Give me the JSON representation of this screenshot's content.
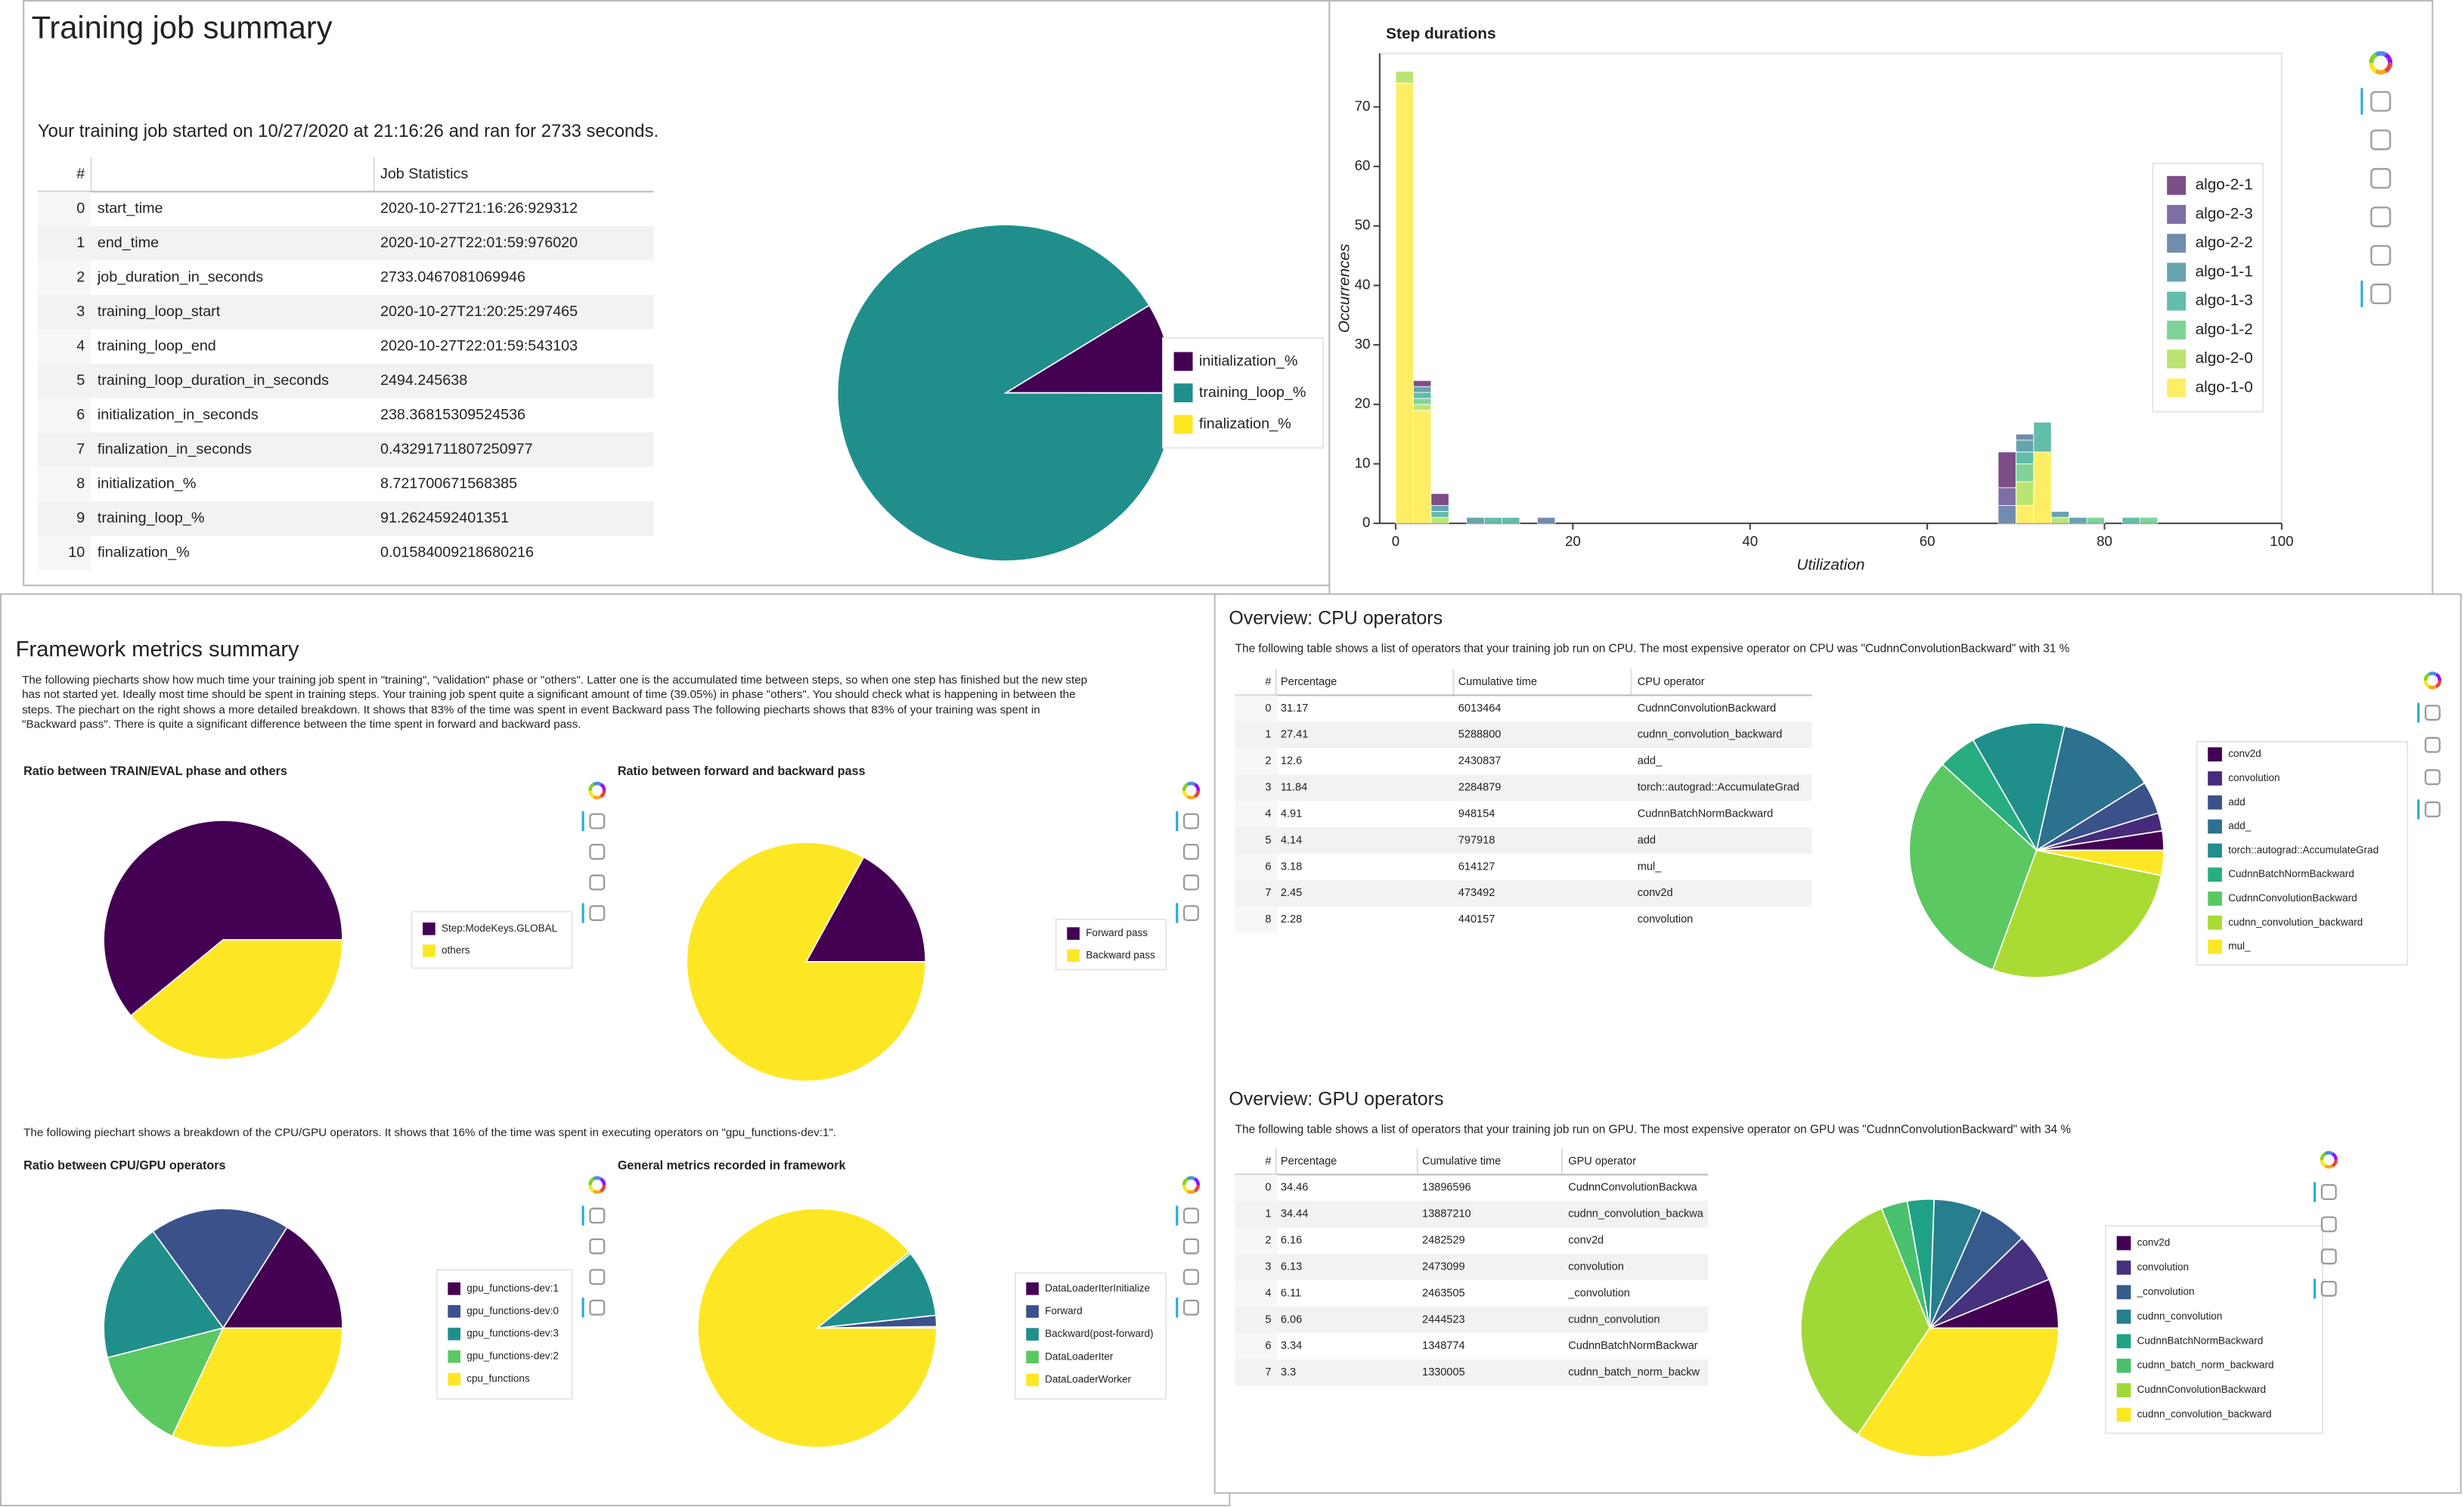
{
  "training_summary": {
    "title": "Training job summary",
    "intro": "Your training job started on 10/27/2020 at 21:16:26 and ran for 2733 seconds.",
    "table": {
      "headers": [
        "#",
        "Job Statistics"
      ],
      "rows": [
        [
          0,
          "start_time",
          "2020-10-27T21:16:26:929312"
        ],
        [
          1,
          "end_time",
          "2020-10-27T22:01:59:976020"
        ],
        [
          2,
          "job_duration_in_seconds",
          "2733.0467081069946"
        ],
        [
          3,
          "training_loop_start",
          "2020-10-27T21:20:25:297465"
        ],
        [
          4,
          "training_loop_end",
          "2020-10-27T22:01:59:543103"
        ],
        [
          5,
          "training_loop_duration_in_seconds",
          "2494.245638"
        ],
        [
          6,
          "initialization_in_seconds",
          "238.36815309524536"
        ],
        [
          7,
          "finalization_in_seconds",
          "0.43291711807250977"
        ],
        [
          8,
          "initialization_%",
          "8.721700671568385"
        ],
        [
          9,
          "training_loop_%",
          "91.2624592401351"
        ],
        [
          10,
          "finalization_%",
          "0.01584009218680216"
        ]
      ]
    },
    "chart_data": {
      "type": "pie",
      "labels": [
        "initialization_%",
        "training_loop_%",
        "finalization_%"
      ],
      "values": [
        8.72,
        91.26,
        0.0158
      ],
      "colors": [
        "#440154",
        "#208f8c",
        "#fde724"
      ]
    }
  },
  "step_durations": {
    "chart_data": {
      "type": "histogram",
      "title": "Step durations",
      "xlabel": "Utilization",
      "ylabel": "Occurrences",
      "bins": [
        0,
        2,
        4,
        6,
        8,
        10,
        12,
        14,
        16,
        18,
        20,
        22,
        24,
        26,
        28,
        30,
        32,
        34,
        36,
        38,
        40,
        42,
        44,
        46,
        48,
        50,
        52,
        54,
        56,
        58,
        60,
        62,
        64,
        66,
        68,
        70,
        72,
        74,
        76,
        78,
        80,
        82,
        84,
        86
      ],
      "xlim": [
        -1.8,
        100
      ],
      "xticks": [
        0,
        20,
        40,
        60,
        80,
        100
      ],
      "ylim": [
        0,
        79
      ],
      "yticks": [
        0,
        10,
        20,
        30,
        40,
        50,
        60,
        70
      ],
      "series": [
        {
          "name": "algo-2-1",
          "color": "#440154",
          "values": [
            0,
            1,
            2,
            0,
            0,
            0,
            0,
            0,
            0,
            0,
            0,
            0,
            0,
            0,
            0,
            0,
            0,
            0,
            0,
            0,
            0,
            0,
            0,
            0,
            0,
            0,
            0,
            0,
            0,
            0,
            0,
            0,
            0,
            0,
            6,
            0,
            0,
            0,
            0,
            0,
            0,
            0,
            0
          ]
        },
        {
          "name": "algo-2-3",
          "color": "#46317e",
          "values": [
            0,
            0,
            0,
            0,
            0,
            0,
            0,
            0,
            0,
            0,
            0,
            0,
            0,
            0,
            0,
            0,
            0,
            0,
            0,
            0,
            0,
            0,
            0,
            0,
            0,
            0,
            0,
            0,
            0,
            0,
            0,
            0,
            0,
            0,
            3,
            0,
            0,
            0,
            0,
            0,
            0,
            0,
            0
          ]
        },
        {
          "name": "algo-2-2",
          "color": "#365a8c",
          "values": [
            0,
            0,
            0,
            0,
            0,
            0,
            0,
            0,
            1,
            0,
            0,
            0,
            0,
            0,
            0,
            0,
            0,
            0,
            0,
            0,
            0,
            0,
            0,
            0,
            0,
            0,
            0,
            0,
            0,
            0,
            0,
            0,
            0,
            0,
            3,
            1,
            0,
            0,
            0,
            0,
            0,
            0,
            0
          ]
        },
        {
          "name": "algo-1-1",
          "color": "#277e8e",
          "values": [
            0,
            1,
            1,
            0,
            1,
            0,
            0,
            0,
            0,
            0,
            0,
            0,
            0,
            0,
            0,
            0,
            0,
            0,
            0,
            0,
            0,
            0,
            0,
            0,
            0,
            0,
            0,
            0,
            0,
            0,
            0,
            0,
            0,
            0,
            0,
            2,
            0,
            1,
            1,
            0,
            0,
            0,
            0
          ]
        },
        {
          "name": "algo-1-3",
          "color": "#1fa187",
          "values": [
            0,
            1,
            1,
            0,
            0,
            1,
            1,
            0,
            0,
            0,
            0,
            0,
            0,
            0,
            0,
            0,
            0,
            0,
            0,
            0,
            0,
            0,
            0,
            0,
            0,
            0,
            0,
            0,
            0,
            0,
            0,
            0,
            0,
            0,
            0,
            2,
            5,
            0,
            0,
            0,
            0,
            1,
            0
          ]
        },
        {
          "name": "algo-1-2",
          "color": "#49c16d",
          "values": [
            0,
            1,
            0,
            0,
            0,
            0,
            0,
            0,
            0,
            0,
            0,
            0,
            0,
            0,
            0,
            0,
            0,
            0,
            0,
            0,
            0,
            0,
            0,
            0,
            0,
            0,
            0,
            0,
            0,
            0,
            0,
            0,
            0,
            0,
            0,
            3,
            0,
            0,
            0,
            1,
            0,
            0,
            1
          ]
        },
        {
          "name": "algo-2-0",
          "color": "#9fd938",
          "values": [
            2,
            1,
            1,
            0,
            0,
            0,
            0,
            0,
            0,
            0,
            0,
            0,
            0,
            0,
            0,
            0,
            0,
            0,
            0,
            0,
            0,
            0,
            0,
            0,
            0,
            0,
            0,
            0,
            0,
            0,
            0,
            0,
            0,
            0,
            0,
            4,
            0,
            1,
            0,
            0,
            0,
            0,
            0
          ]
        },
        {
          "name": "algo-1-0",
          "color": "#fde724",
          "values": [
            74,
            19,
            0,
            0,
            0,
            0,
            0,
            0,
            0,
            0,
            0,
            0,
            0,
            0,
            0,
            0,
            0,
            0,
            0,
            0,
            0,
            0,
            0,
            0,
            0,
            0,
            0,
            0,
            0,
            0,
            0,
            0,
            0,
            0,
            0,
            3,
            12,
            0,
            0,
            0,
            0,
            0,
            0
          ]
        }
      ]
    }
  },
  "framework": {
    "title": "Framework metrics summary",
    "intro": "The following piecharts show how much time your training job spent in \"training\", \"validation\" phase or \"others\". Latter one is the accumulated time between steps, so when one step has finished but the new step has not started yet. Ideally most time should be spent in training steps. Your training job spent quite a significant amount of time (39.05%) in phase \"others\". You should check what is happening in between the steps. The piechart on the right shows a more detailed breakdown. It shows that 83% of the time was spent in event Backward pass The following piecharts shows that 83% of your training was spent in \"Backward pass\". There is quite a significant difference between the time spent in forward and backward pass.",
    "breakdown_text": "The following piechart shows a breakdown of the CPU/GPU operators. It shows that 16% of the time was spent in executing operators on \"gpu_functions-dev:1\".",
    "charts": [
      {
        "type": "pie",
        "title": "Ratio between TRAIN/EVAL phase and others",
        "labels": [
          "Step:ModeKeys.GLOBAL",
          "others"
        ],
        "values": [
          60.95,
          39.05
        ],
        "colors": [
          "#440154",
          "#fde724"
        ]
      },
      {
        "type": "pie",
        "title": "Ratio between forward and backward pass",
        "labels": [
          "Forward pass",
          "Backward pass"
        ],
        "values": [
          17,
          83
        ],
        "colors": [
          "#440154",
          "#fde724"
        ]
      },
      {
        "type": "pie",
        "title": "Ratio between CPU/GPU operators",
        "labels": [
          "gpu_functions-dev:1",
          "gpu_functions-dev:0",
          "gpu_functions-dev:3",
          "gpu_functions-dev:2",
          "cpu_functions"
        ],
        "values": [
          16,
          19,
          19,
          14,
          32
        ],
        "colors": [
          "#440154",
          "#3b518a",
          "#208f8c",
          "#5bc862",
          "#fde724"
        ]
      },
      {
        "type": "pie",
        "title": "General metrics recorded in framework",
        "labels": [
          "DataLoaderIterInitialize",
          "Forward",
          "Backward(post-forward)",
          "DataLoaderIter",
          "DataLoaderWorker"
        ],
        "values": [
          0.2,
          1.5,
          9,
          0.3,
          89
        ],
        "colors": [
          "#440154",
          "#3b518a",
          "#208f8c",
          "#5bc862",
          "#fde724"
        ]
      }
    ]
  },
  "cpu_operators": {
    "title": "Overview: CPU operators",
    "intro": "The following table shows a list of operators that your training job run on CPU. The most expensive operator on CPU was \"CudnnConvolutionBackward\" with 31 %",
    "table": {
      "headers": [
        "#",
        "Percentage",
        "Cumulative time",
        "CPU operator"
      ],
      "rows": [
        [
          0,
          31.17,
          6013464,
          "CudnnConvolutionBackward"
        ],
        [
          1,
          27.41,
          5288800,
          "cudnn_convolution_backward"
        ],
        [
          2,
          12.6,
          2430837,
          "add_"
        ],
        [
          3,
          11.84,
          2284879,
          "torch::autograd::AccumulateGrad"
        ],
        [
          4,
          4.91,
          948154,
          "CudnnBatchNormBackward"
        ],
        [
          5,
          4.14,
          797918,
          "add"
        ],
        [
          6,
          3.18,
          614127,
          "mul_"
        ],
        [
          7,
          2.45,
          473492,
          "conv2d"
        ],
        [
          8,
          2.28,
          440157,
          "convolution"
        ]
      ]
    },
    "chart_data": {
      "type": "pie",
      "labels": [
        "conv2d",
        "convolution",
        "add",
        "add_",
        "torch::autograd::AccumulateGrad",
        "CudnnBatchNormBackward",
        "CudnnConvolutionBackward",
        "cudnn_convolution_backward",
        "mul_"
      ],
      "values": [
        2.45,
        2.28,
        4.14,
        12.6,
        11.84,
        4.91,
        31.17,
        27.41,
        3.18
      ],
      "colors": [
        "#440154",
        "#472b7a",
        "#3b518a",
        "#2c718e",
        "#208f8c",
        "#27ad80",
        "#5bc862",
        "#aadb32",
        "#fde724"
      ]
    }
  },
  "gpu_operators": {
    "title": "Overview: GPU operators",
    "intro": "The following table shows a list of operators that your training job run on GPU. The most expensive operator on GPU was \"CudnnConvolutionBackward\" with 34 %",
    "table": {
      "headers": [
        "#",
        "Percentage",
        "Cumulative time",
        "GPU operator"
      ],
      "rows": [
        [
          0,
          34.46,
          13896596,
          "CudnnConvolutionBackwa"
        ],
        [
          1,
          34.44,
          13887210,
          "cudnn_convolution_backwa"
        ],
        [
          2,
          6.16,
          2482529,
          "conv2d"
        ],
        [
          3,
          6.13,
          2473099,
          "convolution"
        ],
        [
          4,
          6.11,
          2463505,
          "_convolution"
        ],
        [
          5,
          6.06,
          2444523,
          "cudnn_convolution"
        ],
        [
          6,
          3.34,
          1348774,
          "CudnnBatchNormBackwar"
        ],
        [
          7,
          3.3,
          1330005,
          "cudnn_batch_norm_backw"
        ]
      ]
    },
    "chart_data": {
      "type": "pie",
      "labels": [
        "conv2d",
        "convolution",
        "_convolution",
        "cudnn_convolution",
        "CudnnBatchNormBackward",
        "cudnn_batch_norm_backward",
        "CudnnConvolutionBackward",
        "cudnn_convolution_backward"
      ],
      "values": [
        6.16,
        6.13,
        6.11,
        6.06,
        3.34,
        3.3,
        34.46,
        34.44
      ],
      "colors": [
        "#440154",
        "#46317e",
        "#365a8c",
        "#277e8e",
        "#1fa187",
        "#49c16d",
        "#9fd938",
        "#fde724"
      ]
    }
  }
}
